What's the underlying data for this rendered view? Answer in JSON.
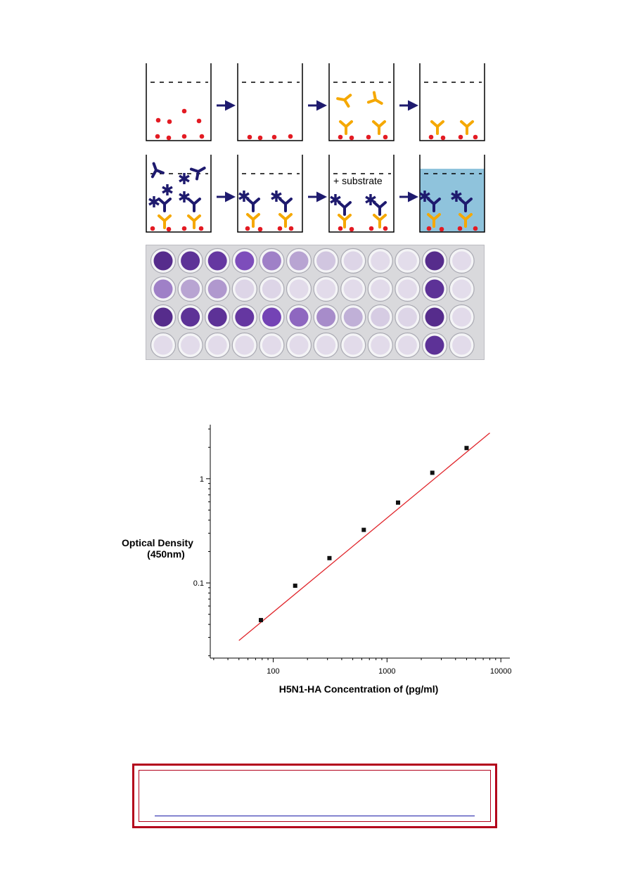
{
  "diagram": {
    "substrate_label": "+ substrate",
    "colors": {
      "antigen": "#e31b23",
      "capture_antibody": "#f5a800",
      "detection_antibody": "#1e1a6e",
      "substrate_fill": "#8fc3dc",
      "arrow": "#1e1a6e"
    }
  },
  "plate": {
    "rows": 4,
    "columns": 12,
    "intensity": [
      [
        0.9,
        0.85,
        0.8,
        0.65,
        0.45,
        0.3,
        0.15,
        0.08,
        0.05,
        0.04,
        0.9,
        0.05
      ],
      [
        0.45,
        0.3,
        0.35,
        0.08,
        0.08,
        0.05,
        0.05,
        0.05,
        0.05,
        0.05,
        0.85,
        0.04
      ],
      [
        0.9,
        0.85,
        0.85,
        0.8,
        0.7,
        0.55,
        0.4,
        0.25,
        0.12,
        0.08,
        0.9,
        0.05
      ],
      [
        0.05,
        0.05,
        0.05,
        0.05,
        0.05,
        0.05,
        0.05,
        0.05,
        0.05,
        0.05,
        0.85,
        0.05
      ]
    ]
  },
  "chart_data": {
    "type": "scatter",
    "title": "",
    "xlabel": "H5N1-HA Concentration of (pg/ml)",
    "ylabel_line1": "Optical Density",
    "ylabel_line2": "(450nm)",
    "x_scale": "log",
    "y_scale": "log",
    "xlim": [
      28,
      12000
    ],
    "ylim": [
      0.019,
      3.3
    ],
    "x_ticks": [
      100,
      1000,
      10000
    ],
    "x_tick_labels": [
      "100",
      "1000",
      "10000"
    ],
    "y_ticks": [
      0.1,
      1
    ],
    "y_tick_labels": [
      "0.1",
      "1"
    ],
    "points": [
      {
        "x": 78,
        "y": 0.044
      },
      {
        "x": 156,
        "y": 0.094
      },
      {
        "x": 312,
        "y": 0.173
      },
      {
        "x": 625,
        "y": 0.323
      },
      {
        "x": 1250,
        "y": 0.59
      },
      {
        "x": 2500,
        "y": 1.14
      },
      {
        "x": 5000,
        "y": 1.97
      }
    ],
    "fit_line": {
      "x": [
        50,
        8000
      ],
      "y": [
        0.028,
        2.75
      ],
      "color": "#e0242a"
    }
  },
  "notice": {
    "link_text": ""
  }
}
